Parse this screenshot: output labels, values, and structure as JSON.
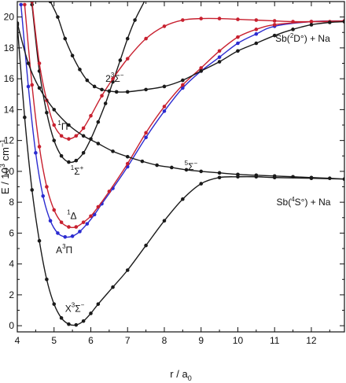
{
  "chart_data": {
    "type": "line",
    "xlabel": "r / a0",
    "ylabel": "E / 10^3 cm^-1",
    "xlim": [
      4,
      12.9
    ],
    "ylim": [
      -0.4,
      21
    ],
    "xticks": [
      4,
      5,
      6,
      7,
      8,
      9,
      10,
      11,
      12
    ],
    "yticks": [
      0,
      2,
      4,
      6,
      8,
      10,
      12,
      14,
      16,
      18,
      20
    ],
    "grid": false,
    "legend": "none",
    "colors": {
      "black": "#1a1a1a",
      "red": "#c8202f",
      "blue": "#2b2bd0"
    },
    "annotations": [
      {
        "id": "x3sigma",
        "text": "X3Σ−",
        "x": 5.3,
        "y": 0.9
      },
      {
        "id": "a3pi",
        "text": "A3Π",
        "x": 5.05,
        "y": 4.7
      },
      {
        "id": "1delta",
        "text": "1Δ",
        "x": 5.35,
        "y": 6.9
      },
      {
        "id": "1sigmaplus",
        "text": "1Σ+",
        "x": 5.45,
        "y": 9.8
      },
      {
        "id": "1pi",
        "text": "1Π",
        "x": 5.1,
        "y": 12.7
      },
      {
        "id": "5sigma",
        "text": "5Σ−",
        "x": 8.55,
        "y": 10.1
      },
      {
        "id": "3sigma",
        "text": "23Σ−",
        "x": 6.4,
        "y": 15.8
      },
      {
        "id": "asym_upper",
        "text": "Sb(2D°) + Na",
        "x": 11.02,
        "y": 18.4
      },
      {
        "id": "asym_lower",
        "text": "Sb(4S°) + Na",
        "x": 11.05,
        "y": 7.8
      }
    ],
    "series": [
      {
        "color": "black",
        "x": [
          4.0,
          4.2,
          4.4,
          4.6,
          4.8,
          5.0,
          5.2,
          5.4,
          5.6,
          5.8,
          6.0,
          6.2,
          6.6,
          7.0,
          7.5,
          8.0,
          8.5,
          9.0,
          9.5,
          10.0,
          10.5,
          11.0,
          12.0,
          12.9
        ],
        "y": [
          19.5,
          13.5,
          8.8,
          5.5,
          3.0,
          1.4,
          0.5,
          0.1,
          0.05,
          0.3,
          0.8,
          1.4,
          2.5,
          3.6,
          5.2,
          6.8,
          8.2,
          9.2,
          9.6,
          9.65,
          9.65,
          9.6,
          9.55,
          9.5
        ]
      },
      {
        "color": "blue",
        "x": [
          4.1,
          4.3,
          4.5,
          4.7,
          4.9,
          5.1,
          5.3,
          5.5,
          5.7,
          5.9,
          6.1,
          6.3,
          6.6,
          7.0,
          7.5,
          8.0,
          8.5,
          9.0,
          9.5,
          10.0,
          10.5,
          11.0,
          12.0,
          12.9
        ],
        "y": [
          20.8,
          15.5,
          11.2,
          8.4,
          6.8,
          6.0,
          5.75,
          5.8,
          6.1,
          6.6,
          7.2,
          7.9,
          8.9,
          10.3,
          12.2,
          13.9,
          15.4,
          16.5,
          17.4,
          18.3,
          18.9,
          19.4,
          19.7,
          19.75
        ]
      },
      {
        "color": "red",
        "x": [
          4.2,
          4.4,
          4.6,
          4.8,
          5.0,
          5.2,
          5.4,
          5.6,
          5.8,
          6.0,
          6.2,
          6.5,
          7.0,
          7.5,
          8.0,
          8.5,
          9.0,
          9.5,
          10.0,
          10.5,
          11.0,
          12.0,
          12.9
        ],
        "y": [
          20.8,
          15.6,
          11.6,
          9.0,
          7.5,
          6.7,
          6.4,
          6.4,
          6.7,
          7.1,
          7.7,
          8.7,
          10.5,
          12.5,
          14.2,
          15.6,
          16.7,
          17.8,
          18.7,
          19.2,
          19.5,
          19.7,
          19.75
        ]
      },
      {
        "color": "black",
        "x": [
          4.4,
          4.6,
          4.8,
          5.0,
          5.2,
          5.4,
          5.6,
          5.8,
          6.0,
          6.2,
          6.4,
          6.6,
          6.8,
          7.0,
          7.2,
          7.5
        ],
        "y": [
          20.8,
          16.5,
          13.8,
          12.0,
          11.0,
          10.6,
          10.7,
          11.2,
          12.1,
          13.2,
          14.4,
          15.8,
          17.2,
          18.6,
          19.8,
          21.2
        ]
      },
      {
        "color": "red",
        "x": [
          4.4,
          4.6,
          4.8,
          5.0,
          5.2,
          5.4,
          5.6,
          5.8,
          6.0,
          6.3,
          6.6,
          7.0,
          7.5,
          8.0,
          8.5,
          9.0,
          9.5,
          10.0,
          10.5,
          11.0,
          11.5,
          12.0,
          12.5,
          12.9
        ],
        "y": [
          21.0,
          17.0,
          14.6,
          13.0,
          12.3,
          12.1,
          12.3,
          12.8,
          13.6,
          14.9,
          16.0,
          17.3,
          18.6,
          19.4,
          19.8,
          19.9,
          19.9,
          19.85,
          19.8,
          19.75,
          19.7,
          19.7,
          19.7,
          19.7
        ]
      },
      {
        "color": "black",
        "x": [
          4.0,
          4.3,
          4.6,
          5.0,
          5.4,
          5.8,
          6.2,
          6.6,
          7.0,
          7.4,
          7.8,
          8.2,
          8.6,
          9.0,
          9.5,
          10.0,
          10.5,
          11.0,
          11.5,
          12.0,
          12.5,
          12.9
        ],
        "y": [
          19.6,
          17.0,
          15.4,
          14.0,
          13.0,
          12.3,
          11.8,
          11.3,
          10.95,
          10.65,
          10.4,
          10.25,
          10.1,
          10.0,
          9.9,
          9.8,
          9.75,
          9.7,
          9.65,
          9.6,
          9.55,
          9.5
        ]
      },
      {
        "color": "black",
        "x": [
          4.9,
          5.1,
          5.3,
          5.5,
          5.7,
          5.9,
          6.1,
          6.3,
          6.5,
          6.7,
          7.0,
          7.5,
          8.0,
          8.5,
          9.0,
          9.5,
          10.0,
          10.5,
          11.0,
          11.5,
          12.0,
          12.5,
          12.9
        ],
        "y": [
          21.0,
          20.0,
          18.6,
          17.5,
          16.6,
          15.9,
          15.5,
          15.3,
          15.2,
          15.15,
          15.15,
          15.3,
          15.5,
          15.9,
          16.5,
          17.1,
          17.8,
          18.3,
          18.8,
          19.2,
          19.5,
          19.65,
          19.7
        ]
      }
    ]
  }
}
